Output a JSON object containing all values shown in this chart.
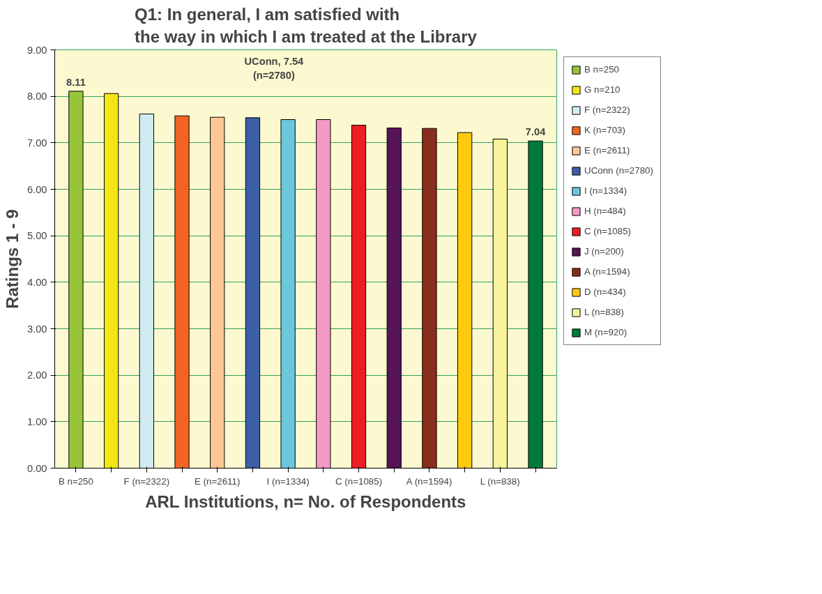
{
  "chart_data": {
    "type": "bar",
    "title": "Q1: In general, I am satisfied with\nthe way in which I am treated at the Library",
    "xlabel": "ARL Institutions, n= No. of Respondents",
    "ylabel": "Ratings 1 - 9",
    "categories": [
      "B n=250",
      null,
      "F (n=2322)",
      null,
      "E (n=2611)",
      null,
      "I (n=1334)",
      null,
      "C (n=1085)",
      null,
      "A (n=1594)",
      null,
      "L (n=838)",
      null
    ],
    "series": [
      {
        "name": "B n=250",
        "color": "#98c43a",
        "values": [
          8.11,
          null,
          null,
          null,
          null,
          null,
          null,
          null,
          null,
          null,
          null,
          null,
          null,
          null
        ],
        "value_labels": [
          "8.11",
          null,
          null,
          null,
          null,
          null,
          null,
          null,
          null,
          null,
          null,
          null,
          null,
          null
        ]
      },
      {
        "name": "G n=210",
        "color": "#f2e614",
        "values": [
          null,
          8.06,
          null,
          null,
          null,
          null,
          null,
          null,
          null,
          null,
          null,
          null,
          null,
          null
        ]
      },
      {
        "name": "F (n=2322)",
        "color": "#d0ecf2",
        "values": [
          null,
          null,
          7.62,
          null,
          null,
          null,
          null,
          null,
          null,
          null,
          null,
          null,
          null,
          null
        ]
      },
      {
        "name": "K (n=703)",
        "color": "#f26424",
        "values": [
          null,
          null,
          null,
          7.58,
          null,
          null,
          null,
          null,
          null,
          null,
          null,
          null,
          null,
          null
        ]
      },
      {
        "name": "E (n=2611)",
        "color": "#fdc896",
        "values": [
          null,
          null,
          null,
          null,
          7.55,
          null,
          null,
          null,
          null,
          null,
          null,
          null,
          null,
          null
        ]
      },
      {
        "name": "UConn (n=2780)",
        "color": "#3d5fa8",
        "values": [
          null,
          null,
          null,
          null,
          null,
          7.54,
          null,
          null,
          null,
          null,
          null,
          null,
          null,
          null
        ]
      },
      {
        "name": "I (n=1334)",
        "color": "#6ac8dc",
        "values": [
          null,
          null,
          null,
          null,
          null,
          null,
          7.5,
          null,
          null,
          null,
          null,
          null,
          null,
          null
        ]
      },
      {
        "name": "H (n=484)",
        "color": "#f29ac4",
        "values": [
          null,
          null,
          null,
          null,
          null,
          null,
          null,
          7.5,
          null,
          null,
          null,
          null,
          null,
          null
        ]
      },
      {
        "name": "C (n=1085)",
        "color": "#ee1c24",
        "values": [
          null,
          null,
          null,
          null,
          null,
          null,
          null,
          null,
          7.38,
          null,
          null,
          null,
          null,
          null
        ]
      },
      {
        "name": "J (n=200)",
        "color": "#561456",
        "values": [
          null,
          null,
          null,
          null,
          null,
          null,
          null,
          null,
          null,
          7.32,
          null,
          null,
          null,
          null
        ]
      },
      {
        "name": "A (n=1594)",
        "color": "#8a2c1c",
        "values": [
          null,
          null,
          null,
          null,
          null,
          null,
          null,
          null,
          null,
          null,
          7.31,
          null,
          null,
          null
        ]
      },
      {
        "name": "D (n=434)",
        "color": "#ffc90e",
        "values": [
          null,
          null,
          null,
          null,
          null,
          null,
          null,
          null,
          null,
          null,
          null,
          7.22,
          null,
          null
        ]
      },
      {
        "name": "L (n=838)",
        "color": "#f7f39a",
        "values": [
          null,
          null,
          null,
          null,
          null,
          null,
          null,
          null,
          null,
          null,
          null,
          null,
          7.08,
          null
        ]
      },
      {
        "name": "M (n=920)",
        "color": "#007a3c",
        "values": [
          null,
          null,
          null,
          null,
          null,
          null,
          null,
          null,
          null,
          null,
          null,
          null,
          null,
          7.04
        ],
        "value_labels": [
          null,
          null,
          null,
          null,
          null,
          null,
          null,
          null,
          null,
          null,
          null,
          null,
          null,
          "7.04"
        ]
      }
    ],
    "annotations": [
      "UConn, 7.54\n(n=2780)"
    ],
    "ylim": [
      0,
      9
    ],
    "yticks": [
      {
        "value": 0,
        "label": "0.00"
      },
      {
        "value": 1,
        "label": "1.00"
      },
      {
        "value": 2,
        "label": "2.00"
      },
      {
        "value": 3,
        "label": "3.00"
      },
      {
        "value": 4,
        "label": "4.00"
      },
      {
        "value": 5,
        "label": "5.00"
      },
      {
        "value": 6,
        "label": "6.00"
      },
      {
        "value": 7,
        "label": "7.00"
      },
      {
        "value": 8,
        "label": "8.00"
      },
      {
        "value": 9,
        "label": "9.00"
      }
    ],
    "grid": "y",
    "legend": "right"
  }
}
